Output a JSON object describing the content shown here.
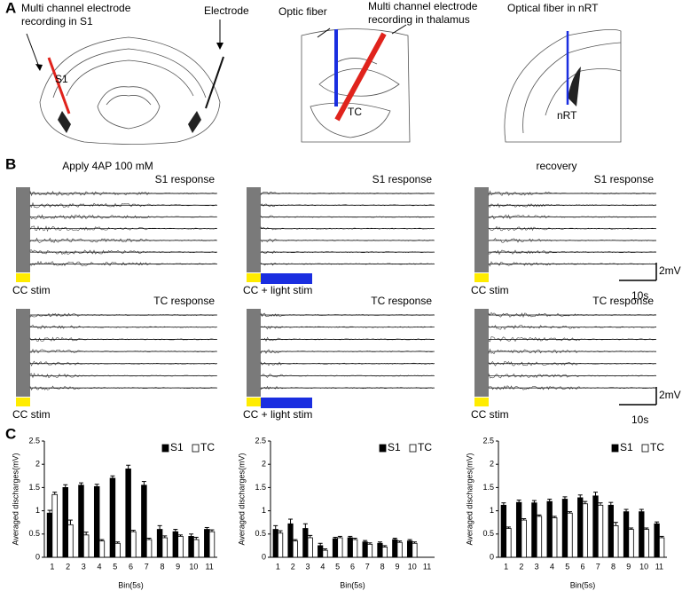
{
  "panel_labels": [
    "A",
    "B",
    "C"
  ],
  "panel_a": {
    "s1_electrode": [
      "Multi channel electrode",
      "recording in S1"
    ],
    "electrode": "Electrode",
    "s1": "S1",
    "optic_fiber": "Optic fiber",
    "thalamus_electrode": [
      "Multi channel electrode",
      "recording in thalamus"
    ],
    "tc": "TC",
    "fiber_nrt": "Optical fiber in nRT",
    "nrt": "nRT"
  },
  "panel_b": {
    "columns": [
      {
        "title": "Apply 4AP 100 mM",
        "top_label": "S1 response",
        "top_stim": "CC stim",
        "bottom_label": "TC response",
        "bottom_stim": "CC stim"
      },
      {
        "top_label": "S1 response",
        "top_stim": "CC + light stim",
        "bottom_label": "TC response",
        "bottom_stim": "CC + light stim"
      },
      {
        "title": "recovery",
        "top_label": "S1 response",
        "top_stim": "CC stim",
        "bottom_label": "TC response",
        "bottom_stim": "CC stim",
        "top_scale": [
          "2mV",
          "10s"
        ],
        "bottom_scale": [
          "2mV",
          "10s"
        ]
      }
    ]
  },
  "chart_data": [
    {
      "type": "bar",
      "x_label": "Bin(5s)",
      "y_label": "Averaged discharges(mV)",
      "categories": [
        "1",
        "2",
        "3",
        "4",
        "5",
        "6",
        "7",
        "8",
        "9",
        "10",
        "11"
      ],
      "series": [
        {
          "name": "S1",
          "color": "#000000",
          "values": [
            0.95,
            1.5,
            1.55,
            1.52,
            1.7,
            1.9,
            1.55,
            0.6,
            0.55,
            0.45,
            0.6
          ],
          "errors": [
            0.06,
            0.06,
            0.05,
            0.05,
            0.05,
            0.08,
            0.08,
            0.08,
            0.05,
            0.05,
            0.04
          ]
        },
        {
          "name": "TC",
          "color": "#ffffff",
          "values": [
            1.35,
            0.7,
            0.48,
            0.35,
            0.3,
            0.55,
            0.38,
            0.42,
            0.45,
            0.38,
            0.55
          ],
          "errors": [
            0.05,
            0.1,
            0.06,
            0.03,
            0.03,
            0.03,
            0.03,
            0.04,
            0.03,
            0.05,
            0.04
          ]
        }
      ],
      "ylim": [
        0,
        2.5
      ],
      "yticks": [
        0,
        0.5,
        1,
        1.5,
        2,
        2.5
      ],
      "legend": "top-right"
    },
    {
      "type": "bar",
      "x_label": "Bin(5s)",
      "y_label": "Averaged discharges(mV)",
      "categories": [
        "1",
        "2",
        "3",
        "4",
        "5",
        "6",
        "7",
        "8",
        "9",
        "10",
        "11"
      ],
      "series": [
        {
          "name": "S1",
          "color": "#000000",
          "values": [
            0.6,
            0.72,
            0.62,
            0.25,
            0.4,
            0.42,
            0.33,
            0.3,
            0.38,
            0.35,
            null
          ],
          "errors": [
            0.08,
            0.1,
            0.1,
            0.05,
            0.03,
            0.03,
            0.03,
            0.03,
            0.03,
            0.03,
            null
          ]
        },
        {
          "name": "TC",
          "color": "#ffffff",
          "values": [
            0.52,
            0.35,
            0.42,
            0.15,
            0.42,
            0.38,
            0.28,
            0.22,
            0.32,
            0.3,
            null
          ],
          "errors": [
            0.05,
            0.03,
            0.05,
            0.03,
            0.03,
            0.03,
            0.03,
            0.03,
            0.03,
            0.03,
            null
          ]
        }
      ],
      "ylim": [
        0,
        2.5
      ],
      "yticks": [
        0,
        0.5,
        1,
        1.5,
        2,
        2.5
      ],
      "legend": "top-right"
    },
    {
      "type": "bar",
      "x_label": "Bin(5s)",
      "y_label": "Averaged discharges(mV)",
      "categories": [
        "1",
        "2",
        "3",
        "4",
        "5",
        "6",
        "7",
        "8",
        "9",
        "10",
        "11"
      ],
      "series": [
        {
          "name": "S1",
          "color": "#000000",
          "values": [
            1.12,
            1.18,
            1.17,
            1.2,
            1.25,
            1.28,
            1.32,
            1.12,
            0.98,
            0.98,
            0.72
          ],
          "errors": [
            0.05,
            0.05,
            0.05,
            0.05,
            0.05,
            0.06,
            0.08,
            0.06,
            0.05,
            0.05,
            0.04
          ]
        },
        {
          "name": "TC",
          "color": "#ffffff",
          "values": [
            0.62,
            0.8,
            0.88,
            0.85,
            0.95,
            1.15,
            1.12,
            0.68,
            0.6,
            0.6,
            0.42
          ],
          "errors": [
            0.03,
            0.03,
            0.03,
            0.03,
            0.03,
            0.05,
            0.05,
            0.07,
            0.03,
            0.03,
            0.03
          ]
        }
      ],
      "ylim": [
        0,
        2.5
      ],
      "yticks": [
        0,
        0.5,
        1,
        1.5,
        2,
        2.5
      ],
      "legend": "top-right"
    }
  ]
}
